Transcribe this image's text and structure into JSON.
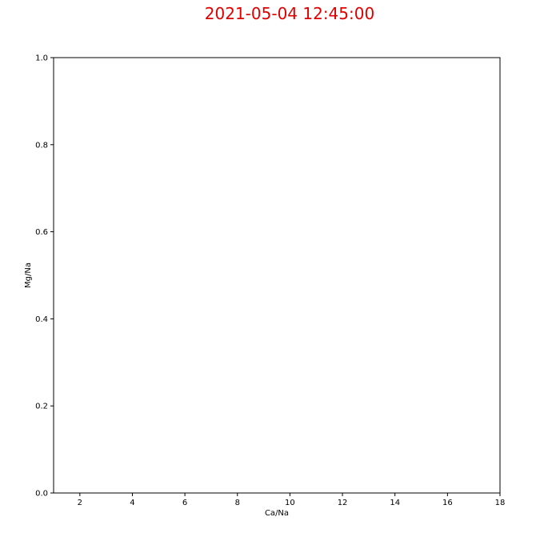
{
  "chart_data": {
    "type": "scatter",
    "title": "2021-05-04 12:45:00",
    "title_color": "#e00000",
    "xlabel": "Ca/Na",
    "ylabel": "Mg/Na",
    "xlim": [
      1,
      18
    ],
    "ylim": [
      0,
      1
    ],
    "xticks": [
      2,
      4,
      6,
      8,
      10,
      12,
      14,
      16,
      18
    ],
    "yticks": [
      0.0,
      0.2,
      0.4,
      0.6,
      0.8,
      1.0
    ],
    "xtick_labels": [
      "2",
      "4",
      "6",
      "8",
      "10",
      "12",
      "14",
      "16",
      "18"
    ],
    "ytick_labels": [
      "0.0",
      "0.2",
      "0.4",
      "0.6",
      "0.8",
      "1.0"
    ],
    "grid": false,
    "series": []
  }
}
